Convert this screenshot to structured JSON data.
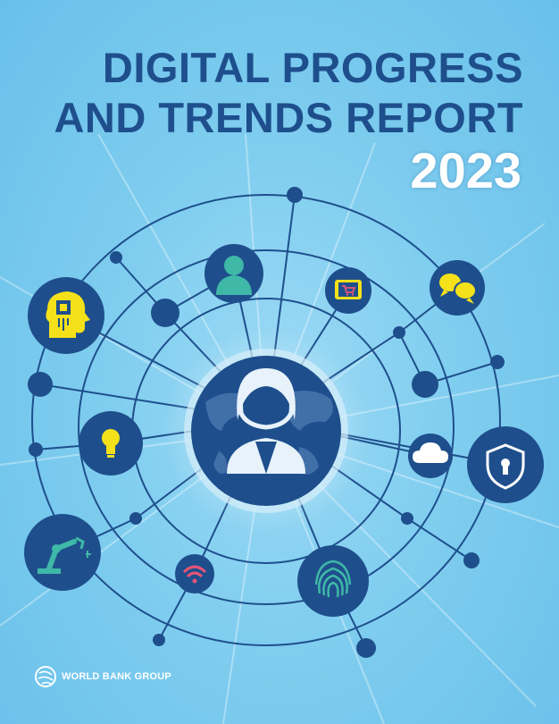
{
  "report": {
    "title_line1": "DIGITAL PROGRESS",
    "title_line2": "AND TRENDS REPORT",
    "year": "2023"
  },
  "publisher": {
    "name": "WORLD BANK GROUP"
  },
  "colors": {
    "background": "#7ccbee",
    "title": "#1e4f8c",
    "node": "#1e4f8c",
    "icon_yellow": "#f5e11a",
    "icon_teal": "#3fb8a8",
    "icon_pink": "#e85576"
  },
  "icons": [
    "central-person-icon",
    "globe-map-icon",
    "person-icon",
    "ai-head-chip-icon",
    "tablet-cart-icon",
    "chat-bubbles-icon",
    "lightbulb-icon",
    "cloud-icon",
    "security-shield-icon",
    "robot-arm-icon",
    "wifi-icon",
    "fingerprint-icon",
    "world-bank-globe-icon"
  ]
}
